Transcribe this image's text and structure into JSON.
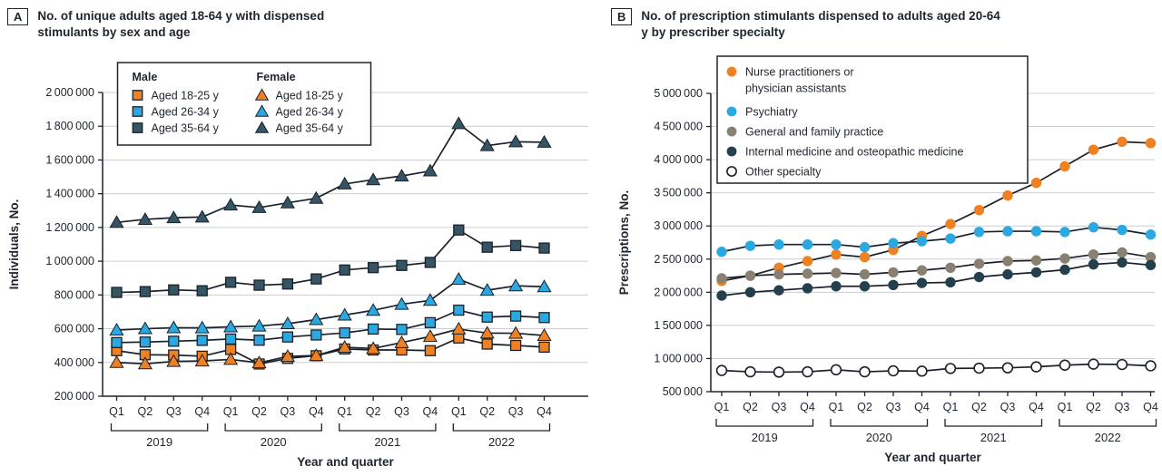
{
  "style": {
    "ink": "#1F252E",
    "grid": "#CBCFD3",
    "line": "#1A212B",
    "marker_edge": "#1A212B",
    "background": "#FFFFFF"
  },
  "panels": [
    {
      "label": "A",
      "title": "No. of unique adults aged 18-64 y with dispensed stimulants by sex and age",
      "y_axis_title": "Individuals, No.",
      "x_axis_title": "Year and quarter"
    },
    {
      "label": "B",
      "title": "No. of prescription stimulants dispensed to adults aged 20-64 y by prescriber specialty",
      "y_axis_title": "Prescriptions, No.",
      "x_axis_title": "Year and quarter"
    }
  ],
  "chart_data": [
    {
      "type": "line",
      "title": "No. of unique adults aged 18-64 y with dispensed stimulants by sex and age",
      "xlabel": "Year and quarter",
      "ylabel": "Individuals, No.",
      "x_labels": [
        "Q1",
        "Q2",
        "Q3",
        "Q4",
        "Q1",
        "Q2",
        "Q3",
        "Q4",
        "Q1",
        "Q2",
        "Q3",
        "Q4",
        "Q1",
        "Q2",
        "Q3",
        "Q4"
      ],
      "year_groups": [
        "2019",
        "2020",
        "2021",
        "2022"
      ],
      "ylim": [
        200000,
        2000000
      ],
      "ytick_step": 200000,
      "grid": true,
      "legend": {
        "position": "top-left",
        "columns": [
          {
            "header": "Male",
            "items": [
              0,
              1,
              2
            ]
          },
          {
            "header": "Female",
            "items": [
              3,
              4,
              5
            ]
          }
        ]
      },
      "series": [
        {
          "name": "Male aged 18-25 y",
          "label": "Aged 18-25 y",
          "sex": "Male",
          "marker": "square",
          "color": "#EE8123",
          "values": [
            470000,
            446000,
            444000,
            437000,
            477000,
            391000,
            424000,
            440000,
            480000,
            474000,
            474000,
            470000,
            545000,
            509000,
            501000,
            491000
          ]
        },
        {
          "name": "Male aged 26-34 y",
          "label": "Aged 26-34 y",
          "sex": "Male",
          "marker": "square",
          "color": "#2BA8E0",
          "values": [
            518000,
            521000,
            526000,
            531000,
            539000,
            532000,
            551000,
            563000,
            575000,
            598000,
            596000,
            636000,
            710000,
            669000,
            675000,
            666000
          ]
        },
        {
          "name": "Male aged 35-64 y",
          "label": "Aged 35-64 y",
          "sex": "Male",
          "marker": "square",
          "color": "#355464",
          "values": [
            815000,
            820000,
            830000,
            825000,
            875000,
            858000,
            865000,
            895000,
            948000,
            962000,
            975000,
            993000,
            1185000,
            1083000,
            1093000,
            1078000
          ]
        },
        {
          "name": "Female aged 18-25 y",
          "label": "Aged 18-25 y",
          "sex": "Female",
          "marker": "triangle",
          "color": "#EE8123",
          "values": [
            400000,
            392000,
            406000,
            409000,
            418000,
            398000,
            436000,
            441000,
            490000,
            483000,
            518000,
            554000,
            598000,
            574000,
            573000,
            560000
          ]
        },
        {
          "name": "Female aged 26-34 y",
          "label": "Aged 26-34 y",
          "sex": "Female",
          "marker": "triangle",
          "color": "#2BA8E0",
          "values": [
            592000,
            600000,
            606000,
            605000,
            611000,
            616000,
            630000,
            654000,
            681000,
            709000,
            745000,
            768000,
            893000,
            828000,
            854000,
            849000
          ]
        },
        {
          "name": "Female aged 35-64 y",
          "label": "Aged 35-64 y",
          "sex": "Female",
          "marker": "triangle",
          "color": "#355464",
          "values": [
            1230000,
            1248000,
            1258000,
            1262000,
            1333000,
            1318000,
            1346000,
            1373000,
            1458000,
            1483000,
            1505000,
            1535000,
            1815000,
            1685000,
            1708000,
            1705000
          ]
        }
      ]
    },
    {
      "type": "line",
      "title": "No. of prescription stimulants dispensed to adults aged 20-64 y by prescriber specialty",
      "xlabel": "Year and quarter",
      "ylabel": "Prescriptions, No.",
      "x_labels": [
        "Q1",
        "Q2",
        "Q3",
        "Q4",
        "Q1",
        "Q2",
        "Q3",
        "Q4",
        "Q1",
        "Q2",
        "Q3",
        "Q4",
        "Q1",
        "Q2",
        "Q3",
        "Q4"
      ],
      "year_groups": [
        "2019",
        "2020",
        "2021",
        "2022"
      ],
      "ylim": [
        500000,
        5000000
      ],
      "ytick_step": 500000,
      "grid": true,
      "legend": {
        "position": "top-left",
        "list_order": [
          0,
          1,
          2,
          3,
          4
        ]
      },
      "series": [
        {
          "name": "Nurse practitioners or physician assistants",
          "label_lines": [
            "Nurse practitioners or",
            "physician assistants"
          ],
          "marker": "circle",
          "color": "#EE8123",
          "values": [
            2170000,
            2250000,
            2370000,
            2470000,
            2570000,
            2530000,
            2640000,
            2850000,
            3030000,
            3240000,
            3460000,
            3650000,
            3900000,
            4150000,
            4270000,
            4250000
          ]
        },
        {
          "name": "Psychiatry",
          "label_lines": [
            "Psychiatry"
          ],
          "marker": "circle",
          "color": "#2BA8E0",
          "values": [
            2610000,
            2700000,
            2720000,
            2720000,
            2720000,
            2680000,
            2740000,
            2770000,
            2810000,
            2910000,
            2920000,
            2920000,
            2910000,
            2980000,
            2940000,
            2870000
          ]
        },
        {
          "name": "General and family practice",
          "label_lines": [
            "General and family practice"
          ],
          "marker": "circle",
          "color": "#8A8072",
          "values": [
            2210000,
            2250000,
            2270000,
            2280000,
            2290000,
            2270000,
            2300000,
            2330000,
            2370000,
            2430000,
            2470000,
            2480000,
            2510000,
            2570000,
            2600000,
            2530000
          ]
        },
        {
          "name": "Internal medicine and osteopathic medicine",
          "label_lines": [
            "Internal medicine and osteopathic medicine"
          ],
          "marker": "circle",
          "color": "#24404D",
          "values": [
            1950000,
            2000000,
            2030000,
            2060000,
            2090000,
            2090000,
            2110000,
            2140000,
            2150000,
            2230000,
            2270000,
            2300000,
            2340000,
            2420000,
            2450000,
            2410000
          ]
        },
        {
          "name": "Other specialty",
          "label_lines": [
            "Other specialty"
          ],
          "marker": "circle-open",
          "color": "#FFFFFF",
          "values": [
            820000,
            800000,
            795000,
            800000,
            830000,
            800000,
            815000,
            810000,
            850000,
            855000,
            860000,
            875000,
            900000,
            915000,
            910000,
            890000
          ]
        }
      ]
    }
  ]
}
